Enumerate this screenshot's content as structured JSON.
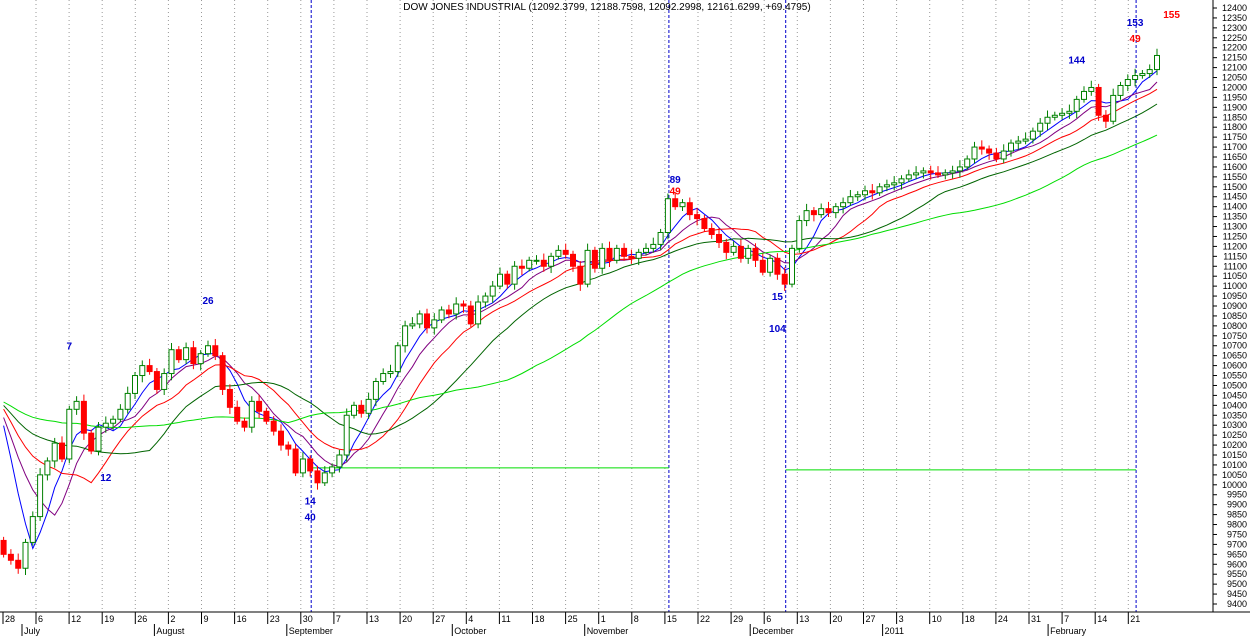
{
  "chart_data": {
    "type": "candlestick",
    "title": "DOW JONES INDUSTRIAL (12092.3799, 12188.7598, 12092.2998, 12161.6299, +69.4795)",
    "colors": {
      "up": "#008000",
      "down": "#ff0000",
      "ma1": "#0000ff",
      "ma2": "#800080",
      "ma3": "#ff0000",
      "ma4": "#006400",
      "ma5": "#00dd00",
      "cycle_line": "#0000cc",
      "grid": "#999999",
      "annot_blue": "#0000cc",
      "annot_red": "#ff0000"
    },
    "y_axis": {
      "ylim": [
        9400,
        12400
      ],
      "ticks": [
        9400,
        9450,
        9500,
        9550,
        9600,
        9650,
        9700,
        9750,
        9800,
        9850,
        9900,
        9950,
        10000,
        10050,
        10100,
        10150,
        10200,
        10250,
        10300,
        10350,
        10400,
        10450,
        10500,
        10550,
        10600,
        10650,
        10700,
        10750,
        10800,
        10850,
        10900,
        10950,
        11000,
        11050,
        11100,
        11150,
        11200,
        11250,
        11300,
        11350,
        11400,
        11450,
        11500,
        11550,
        11600,
        11650,
        11700,
        11750,
        11800,
        11850,
        11900,
        11950,
        12000,
        12050,
        12100,
        12150,
        12200,
        12250,
        12300,
        12350,
        12400
      ]
    },
    "x_axis": {
      "day_labels": [
        "28",
        "6",
        "12",
        "19",
        "26",
        "2",
        "9",
        "16",
        "23",
        "30",
        "7",
        "13",
        "20",
        "27",
        "4",
        "11",
        "18",
        "25",
        "1",
        "8",
        "15",
        "22",
        "29",
        "6",
        "13",
        "20",
        "27",
        "3",
        "10",
        "18",
        "24",
        "31",
        "7",
        "14",
        "21"
      ],
      "month_labels": [
        "July",
        "August",
        "September",
        "October",
        "November",
        "December",
        "2011",
        "February"
      ]
    },
    "price": {
      "start": 9720,
      "closes": [
        9650,
        9620,
        9580,
        9710,
        9840,
        10050,
        10120,
        10210,
        10130,
        10380,
        10420,
        10260,
        10170,
        10290,
        10310,
        10330,
        10380,
        10460,
        10550,
        10600,
        10570,
        10480,
        10560,
        10680,
        10630,
        10690,
        10610,
        10660,
        10700,
        10650,
        10480,
        10390,
        10320,
        10290,
        10420,
        10370,
        10320,
        10270,
        10200,
        10180,
        10060,
        10130,
        10070,
        10010,
        10060,
        10090,
        10150,
        10350,
        10400,
        10360,
        10430,
        10520,
        10560,
        10570,
        10700,
        10800,
        10810,
        10860,
        10790,
        10830,
        10880,
        10860,
        10910,
        10900,
        10810,
        10920,
        10950,
        11000,
        11060,
        11010,
        11100,
        11090,
        11130,
        11130,
        11100,
        11150,
        11180,
        11160,
        11100,
        11010,
        11180,
        11090,
        11190,
        11130,
        11190,
        11150,
        11140,
        11170,
        11190,
        11210,
        11270,
        11440,
        11400,
        11420,
        11360,
        11340,
        11290,
        11260,
        11220,
        11170,
        11200,
        11140,
        11190,
        11130,
        11070,
        11140,
        11060,
        11010,
        11190,
        11330,
        11380,
        11360,
        11390,
        11370,
        11400,
        11420,
        11450,
        11460,
        11480,
        11470,
        11500,
        11510,
        11520,
        11540,
        11560,
        11570,
        11580,
        11570,
        11560,
        11570,
        11580,
        11600,
        11640,
        11700,
        11690,
        11670,
        11640,
        11680,
        11720,
        11730,
        11740,
        11780,
        11820,
        11850,
        11860,
        11870,
        11880,
        11940,
        11980,
        12000,
        11860,
        11830,
        11960,
        12010,
        12040,
        12060,
        12070,
        12090,
        12161
      ]
    },
    "annotations": [
      {
        "text": "7",
        "color": "blue"
      },
      {
        "text": "12",
        "color": "blue"
      },
      {
        "text": "26",
        "color": "blue"
      },
      {
        "text": "14",
        "color": "blue"
      },
      {
        "text": "40",
        "color": "blue"
      },
      {
        "text": "89",
        "color": "blue"
      },
      {
        "text": "49",
        "color": "red"
      },
      {
        "text": "15",
        "color": "blue"
      },
      {
        "text": "104",
        "color": "blue"
      },
      {
        "text": "144",
        "color": "blue"
      },
      {
        "text": "153",
        "color": "blue"
      },
      {
        "text": "49",
        "color": "red"
      },
      {
        "text": "155",
        "color": "red"
      }
    ],
    "cycle_lines": [
      {
        "segment_level": 10085
      },
      {
        "segment_level": 10075
      }
    ],
    "grid": true
  }
}
